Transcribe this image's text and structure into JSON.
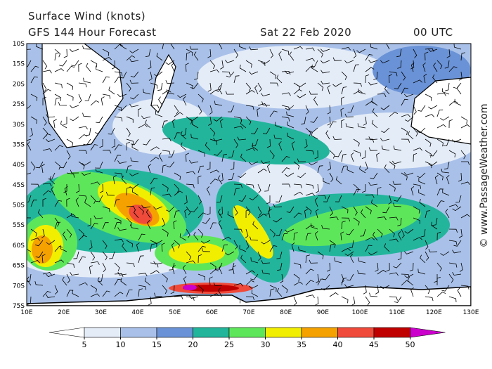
{
  "header": {
    "title": "Surface Wind (knots)",
    "model": "GFS 144 Hour Forecast",
    "date": "Sat 22 Feb 2020",
    "time": "00 UTC"
  },
  "map": {
    "lat_labels": [
      "10S",
      "15S",
      "20S",
      "25S",
      "30S",
      "35S",
      "40S",
      "45S",
      "50S",
      "55S",
      "60S",
      "65S",
      "70S",
      "75S"
    ],
    "lon_labels": [
      "10E",
      "20E",
      "30E",
      "40E",
      "50E",
      "60E",
      "70E",
      "80E",
      "90E",
      "100E",
      "110E",
      "120E",
      "130E"
    ]
  },
  "colorbar": {
    "labels": [
      5,
      10,
      15,
      20,
      25,
      30,
      35,
      40,
      45,
      50
    ],
    "colors": [
      "#ffffff",
      "#e4ecf8",
      "#a9c1e9",
      "#6a92d6",
      "#22b59c",
      "#5ee65a",
      "#f2ee00",
      "#f5a200",
      "#ef4a3a",
      "#c00000",
      "#cc00cc"
    ]
  },
  "credit": "© www.PassageWeather.com"
}
